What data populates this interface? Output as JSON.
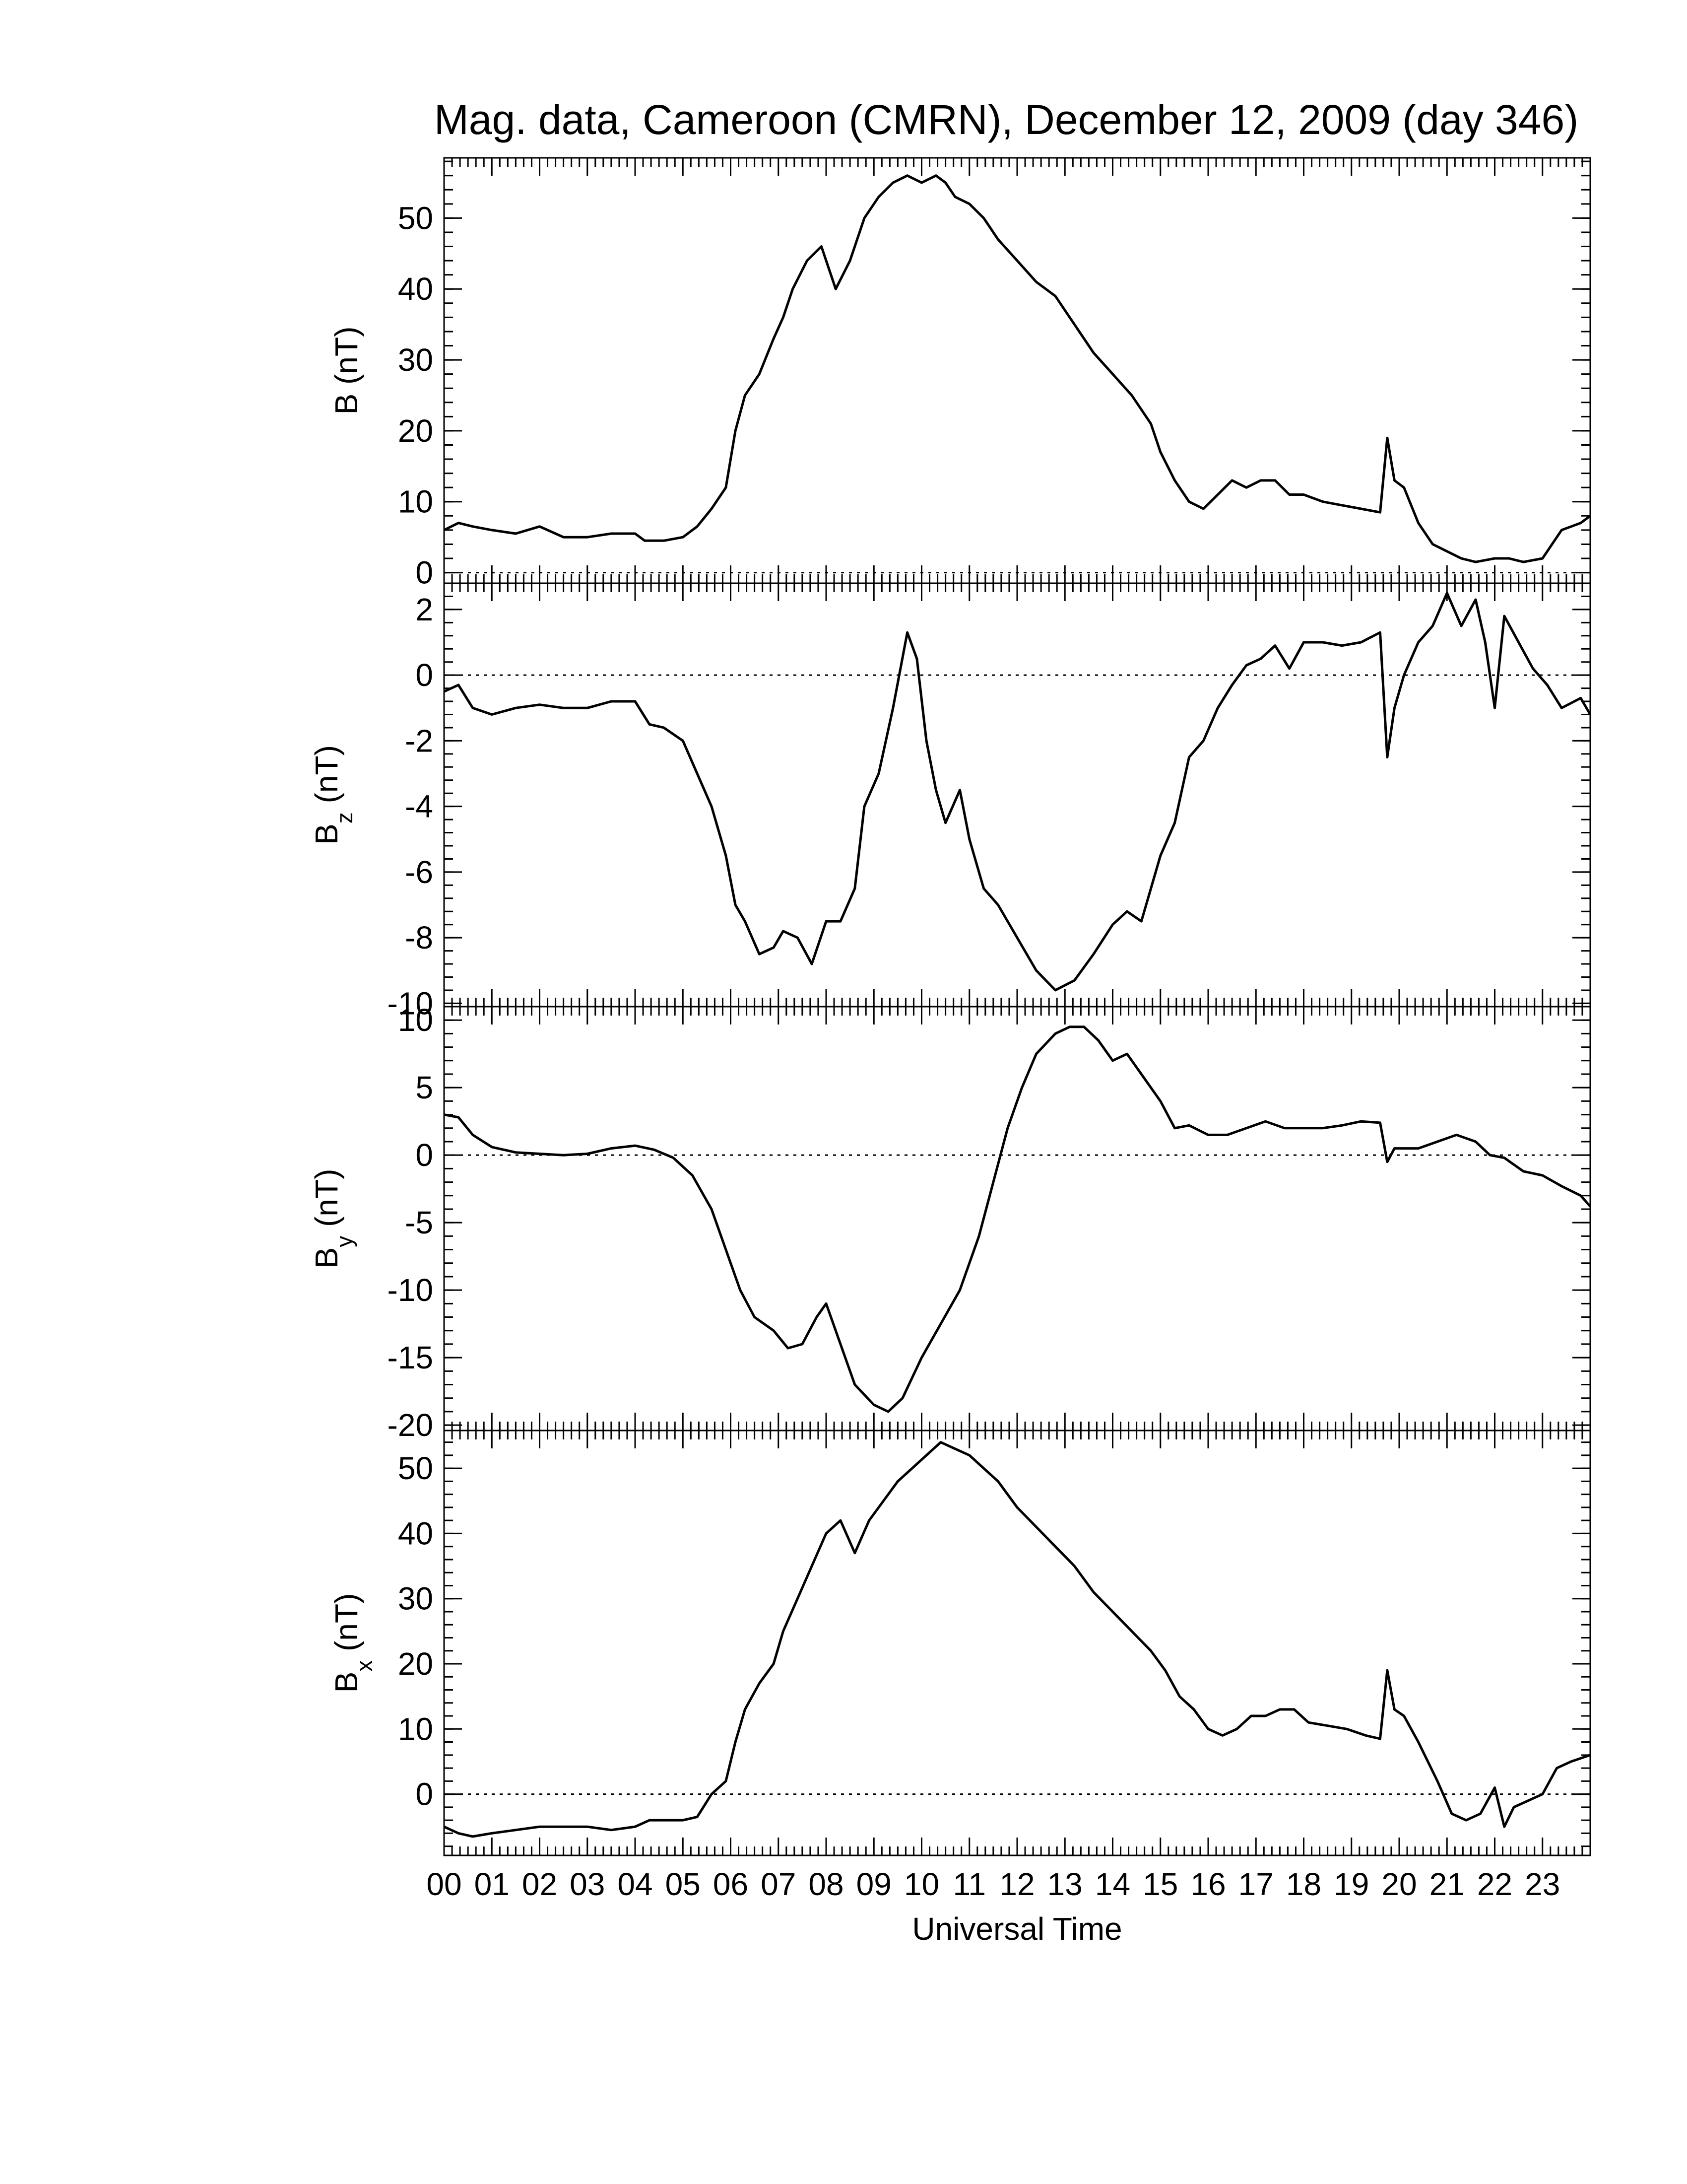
{
  "chart_data": {
    "type": "line",
    "title": "Mag. data, Cameroon (CMRN), December 12, 2009 (day 346)",
    "xlabel": "Universal Time",
    "x_ticks": [
      "00",
      "01",
      "02",
      "03",
      "04",
      "05",
      "06",
      "07",
      "08",
      "09",
      "10",
      "11",
      "12",
      "13",
      "14",
      "15",
      "16",
      "17",
      "18",
      "19",
      "20",
      "21",
      "22",
      "23"
    ],
    "xlim": [
      0,
      24
    ],
    "panels": [
      {
        "id": "B",
        "ylabel": "B (nT)",
        "ylabel_main": "B",
        "ylabel_sub": "",
        "ylabel_unit": " (nT)",
        "ylim": [
          -1.5,
          58.5
        ],
        "yticks": [
          0,
          10,
          20,
          30,
          40,
          50
        ],
        "zero_line": true,
        "x": [
          0,
          0.3,
          0.6,
          1.0,
          1.5,
          2.0,
          2.5,
          3.0,
          3.5,
          4.0,
          4.2,
          4.6,
          5.0,
          5.3,
          5.6,
          5.9,
          6.1,
          6.3,
          6.6,
          6.9,
          7.1,
          7.3,
          7.6,
          7.9,
          8.2,
          8.5,
          8.8,
          9.1,
          9.4,
          9.7,
          10.0,
          10.3,
          10.5,
          10.7,
          11.0,
          11.3,
          11.6,
          12.0,
          12.4,
          12.8,
          13.2,
          13.6,
          14.0,
          14.4,
          14.8,
          15.0,
          15.3,
          15.6,
          15.9,
          16.2,
          16.5,
          16.8,
          17.1,
          17.4,
          17.7,
          18.0,
          18.4,
          18.8,
          19.2,
          19.6,
          19.75,
          19.9,
          20.1,
          20.4,
          20.7,
          21.0,
          21.3,
          21.6,
          22.0,
          22.3,
          22.6,
          23.0,
          23.4,
          23.8,
          24.0
        ],
        "y": [
          6,
          7,
          6.5,
          6,
          5.5,
          6.5,
          5,
          5,
          5.5,
          5.5,
          4.5,
          4.5,
          5,
          6.5,
          9,
          12,
          20,
          25,
          28,
          33,
          36,
          40,
          44,
          46,
          40,
          44,
          50,
          53,
          55,
          56,
          55,
          56,
          55,
          53,
          52,
          50,
          47,
          44,
          41,
          39,
          35,
          31,
          28,
          25,
          21,
          17,
          13,
          10,
          9,
          11,
          13,
          12,
          13,
          13,
          11,
          11,
          10,
          9.5,
          9,
          8.5,
          19,
          13,
          12,
          7,
          4,
          3,
          2,
          1.5,
          2,
          2,
          1.5,
          2,
          6,
          7,
          8
        ]
      },
      {
        "id": "Bz",
        "ylabel": "Bz (nT)",
        "ylabel_main": "B",
        "ylabel_sub": "z",
        "ylabel_unit": " (nT)",
        "ylim": [
          -10.1,
          2.8
        ],
        "yticks": [
          -10,
          -8,
          -6,
          -4,
          -2,
          0,
          2
        ],
        "zero_line": true,
        "x": [
          0,
          0.3,
          0.6,
          1.0,
          1.5,
          2.0,
          2.5,
          3.0,
          3.5,
          4.0,
          4.3,
          4.6,
          5.0,
          5.3,
          5.6,
          5.9,
          6.1,
          6.3,
          6.6,
          6.9,
          7.1,
          7.4,
          7.7,
          8.0,
          8.3,
          8.6,
          8.8,
          9.1,
          9.4,
          9.7,
          9.9,
          10.1,
          10.3,
          10.5,
          10.8,
          11.0,
          11.3,
          11.6,
          12.0,
          12.4,
          12.8,
          13.2,
          13.6,
          14.0,
          14.3,
          14.6,
          15.0,
          15.3,
          15.6,
          15.9,
          16.2,
          16.5,
          16.8,
          17.1,
          17.4,
          17.7,
          18.0,
          18.4,
          18.8,
          19.2,
          19.6,
          19.75,
          19.9,
          20.1,
          20.4,
          20.7,
          21.0,
          21.3,
          21.6,
          21.8,
          22.0,
          22.2,
          22.5,
          22.8,
          23.1,
          23.4,
          23.8,
          24.0
        ],
        "y": [
          -0.5,
          -0.3,
          -1,
          -1.2,
          -1,
          -0.9,
          -1,
          -1,
          -0.8,
          -0.8,
          -1.5,
          -1.6,
          -2,
          -3,
          -4,
          -5.5,
          -7,
          -7.5,
          -8.5,
          -8.3,
          -7.8,
          -8,
          -8.8,
          -7.5,
          -7.5,
          -6.5,
          -4,
          -3,
          -1,
          1.3,
          0.5,
          -2,
          -3.5,
          -4.5,
          -3.5,
          -5,
          -6.5,
          -7,
          -8,
          -9,
          -9.6,
          -9.3,
          -8.5,
          -7.6,
          -7.2,
          -7.5,
          -5.5,
          -4.5,
          -2.5,
          -2,
          -1,
          -0.3,
          0.3,
          0.5,
          0.9,
          0.2,
          1,
          1,
          0.9,
          1,
          1.3,
          -2.5,
          -1,
          0,
          1,
          1.5,
          2.5,
          1.5,
          2.3,
          1,
          -1,
          1.8,
          1,
          0.2,
          -0.3,
          -1,
          -0.7,
          -1.2
        ]
      },
      {
        "id": "By",
        "ylabel": "By (nT)",
        "ylabel_main": "B",
        "ylabel_sub": "y",
        "ylabel_unit": " (nT)",
        "ylim": [
          -20.4,
          11
        ],
        "yticks": [
          -20,
          -15,
          -10,
          -5,
          0,
          5,
          10
        ],
        "zero_line": true,
        "x": [
          0,
          0.3,
          0.6,
          1.0,
          1.5,
          2.0,
          2.5,
          3.0,
          3.5,
          4.0,
          4.4,
          4.8,
          5.2,
          5.6,
          5.9,
          6.2,
          6.5,
          6.9,
          7.2,
          7.5,
          7.8,
          8.0,
          8.3,
          8.6,
          9.0,
          9.3,
          9.6,
          10.0,
          10.4,
          10.8,
          11.2,
          11.5,
          11.8,
          12.1,
          12.4,
          12.8,
          13.1,
          13.4,
          13.7,
          14.0,
          14.3,
          14.6,
          15.0,
          15.3,
          15.6,
          16.0,
          16.4,
          16.8,
          17.2,
          17.6,
          18.0,
          18.4,
          18.8,
          19.2,
          19.6,
          19.75,
          19.9,
          20.1,
          20.4,
          20.8,
          21.2,
          21.6,
          21.9,
          22.2,
          22.6,
          23.0,
          23.4,
          23.8,
          24.0
        ],
        "y": [
          3,
          2.8,
          1.5,
          0.6,
          0.2,
          0.1,
          0,
          0.1,
          0.5,
          0.7,
          0.4,
          -0.2,
          -1.5,
          -4,
          -7,
          -10,
          -12,
          -13,
          -14.3,
          -14,
          -12,
          -11,
          -14,
          -17,
          -18.5,
          -19,
          -18,
          -15,
          -12.5,
          -10,
          -6,
          -2,
          2,
          5,
          7.5,
          9,
          9.5,
          9.5,
          8.5,
          7,
          7.5,
          6,
          4,
          2,
          2.2,
          1.5,
          1.5,
          2,
          2.5,
          2,
          2,
          2,
          2.2,
          2.5,
          2.4,
          -0.5,
          0.5,
          0.5,
          0.5,
          1,
          1.5,
          1,
          0,
          -0.2,
          -1.2,
          -1.5,
          -2.3,
          -3,
          -3.8
        ]
      },
      {
        "id": "Bx",
        "ylabel": "Bx (nT)",
        "ylabel_main": "B",
        "ylabel_sub": "x",
        "ylabel_unit": " (nT)",
        "ylim": [
          -9.4,
          55.8
        ],
        "yticks": [
          0,
          10,
          20,
          30,
          40,
          50
        ],
        "zero_line": true,
        "x": [
          0,
          0.3,
          0.6,
          1.0,
          1.5,
          2.0,
          2.5,
          3.0,
          3.5,
          4.0,
          4.3,
          4.6,
          5.0,
          5.3,
          5.6,
          5.9,
          6.1,
          6.3,
          6.6,
          6.9,
          7.1,
          7.4,
          7.7,
          8.0,
          8.3,
          8.6,
          8.9,
          9.2,
          9.5,
          9.8,
          10.1,
          10.4,
          10.7,
          11.0,
          11.3,
          11.6,
          12.0,
          12.4,
          12.8,
          13.2,
          13.6,
          14.0,
          14.4,
          14.8,
          15.1,
          15.4,
          15.7,
          16.0,
          16.3,
          16.6,
          16.9,
          17.2,
          17.5,
          17.8,
          18.1,
          18.5,
          18.9,
          19.3,
          19.6,
          19.75,
          19.9,
          20.1,
          20.4,
          20.8,
          21.1,
          21.4,
          21.7,
          22.0,
          22.2,
          22.4,
          22.7,
          23.0,
          23.3,
          23.6,
          24.0
        ],
        "y": [
          -5,
          -6,
          -6.5,
          -6,
          -5.5,
          -5,
          -5,
          -5,
          -5.5,
          -5,
          -4,
          -4,
          -4,
          -3.5,
          0,
          2,
          8,
          13,
          17,
          20,
          25,
          30,
          35,
          40,
          42,
          37,
          42,
          45,
          48,
          50,
          52,
          54,
          53,
          52,
          50,
          48,
          44,
          41,
          38,
          35,
          31,
          28,
          25,
          22,
          19,
          15,
          13,
          10,
          9,
          10,
          12,
          12,
          13,
          13,
          11,
          10.5,
          10,
          9,
          8.5,
          19,
          13,
          12,
          8,
          2,
          -3,
          -4,
          -3,
          1,
          -5,
          -2,
          -1,
          0,
          4,
          5,
          6
        ]
      }
    ]
  }
}
